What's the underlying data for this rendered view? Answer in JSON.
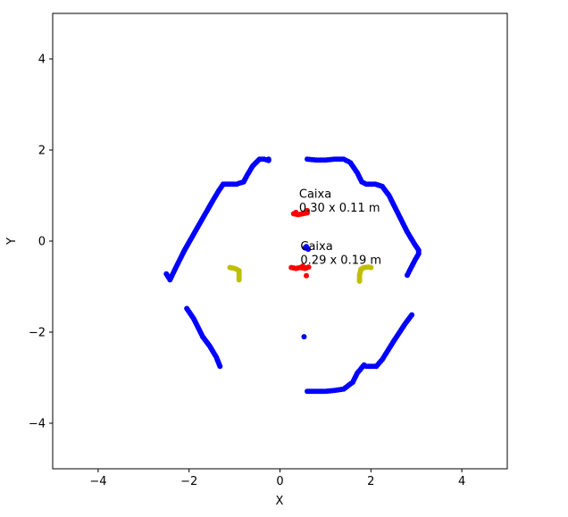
{
  "chart_data": {
    "type": "scatter",
    "xlabel": "X",
    "ylabel": "Y",
    "xlim": [
      -5,
      5
    ],
    "ylim": [
      -5,
      5
    ],
    "xticks": [
      -4,
      -2,
      0,
      2,
      4
    ],
    "yticks": [
      -4,
      -2,
      0,
      2,
      4
    ],
    "xtick_labels": [
      "−4",
      "−2",
      "0",
      "2",
      "4"
    ],
    "ytick_labels": [
      "−4",
      "−2",
      "0",
      "2",
      "4"
    ],
    "grid": false,
    "legend": "none",
    "series": [
      {
        "color": "#0000ff",
        "marker_size": 3.0,
        "polylines": [
          [
            [
              -2.5,
              -0.72
            ],
            [
              -2.45,
              -0.8
            ],
            [
              -2.42,
              -0.85
            ],
            [
              -2.3,
              -0.6
            ],
            [
              -2.1,
              -0.2
            ],
            [
              -1.9,
              0.15
            ],
            [
              -1.7,
              0.5
            ],
            [
              -1.5,
              0.85
            ],
            [
              -1.35,
              1.1
            ],
            [
              -1.25,
              1.25
            ],
            [
              -1.0,
              1.25
            ],
            [
              -0.95,
              1.25
            ],
            [
              -0.9,
              1.27
            ],
            [
              -0.8,
              1.3
            ],
            [
              -0.72,
              1.45
            ],
            [
              -0.6,
              1.65
            ],
            [
              -0.45,
              1.8
            ],
            [
              -0.35,
              1.8
            ],
            [
              -0.25,
              1.77
            ],
            [
              -0.25,
              1.8
            ]
          ],
          [
            [
              0.6,
              1.8
            ],
            [
              0.8,
              1.78
            ],
            [
              1.0,
              1.78
            ],
            [
              1.2,
              1.8
            ],
            [
              1.4,
              1.8
            ],
            [
              1.5,
              1.75
            ],
            [
              1.55,
              1.72
            ],
            [
              1.7,
              1.5
            ],
            [
              1.8,
              1.3
            ],
            [
              1.9,
              1.25
            ],
            [
              2.1,
              1.25
            ],
            [
              2.25,
              1.2
            ],
            [
              2.4,
              1.0
            ],
            [
              2.6,
              0.6
            ],
            [
              2.8,
              0.2
            ],
            [
              2.95,
              -0.05
            ],
            [
              3.05,
              -0.2
            ],
            [
              3.05,
              -0.28
            ],
            [
              2.98,
              -0.4
            ],
            [
              2.85,
              -0.65
            ],
            [
              2.8,
              -0.75
            ]
          ],
          [
            [
              2.9,
              -1.62
            ],
            [
              2.75,
              -1.82
            ],
            [
              2.5,
              -2.2
            ],
            [
              2.25,
              -2.6
            ],
            [
              2.12,
              -2.75
            ],
            [
              1.9,
              -2.75
            ],
            [
              1.85,
              -2.72
            ],
            [
              1.8,
              -2.78
            ],
            [
              1.7,
              -2.9
            ],
            [
              1.6,
              -3.1
            ],
            [
              1.4,
              -3.25
            ],
            [
              1.2,
              -3.28
            ],
            [
              1.0,
              -3.3
            ],
            [
              0.8,
              -3.3
            ],
            [
              0.6,
              -3.3
            ]
          ],
          [
            [
              -2.05,
              -1.48
            ],
            [
              -1.9,
              -1.7
            ],
            [
              -1.7,
              -2.1
            ],
            [
              -1.55,
              -2.3
            ],
            [
              -1.4,
              -2.55
            ],
            [
              -1.32,
              -2.75
            ]
          ]
        ],
        "points": [
          [
            0.55,
            -0.15
          ],
          [
            0.62,
            -0.18
          ],
          [
            0.58,
            -0.12
          ],
          [
            0.53,
            -2.1
          ]
        ]
      },
      {
        "color": "#ff0000",
        "marker_size": 3.0,
        "polylines": [
          [
            [
              0.3,
              0.6
            ],
            [
              0.4,
              0.58
            ],
            [
              0.5,
              0.6
            ],
            [
              0.6,
              0.62
            ],
            [
              0.6,
              0.67
            ]
          ],
          [
            [
              0.25,
              -0.58
            ],
            [
              0.35,
              -0.6
            ],
            [
              0.45,
              -0.58
            ],
            [
              0.55,
              -0.6
            ],
            [
              0.63,
              -0.57
            ]
          ]
        ],
        "points": [
          [
            0.58,
            -0.76
          ],
          [
            0.5,
            -0.55
          ],
          [
            0.35,
            0.63
          ]
        ]
      },
      {
        "color": "#bfbf00",
        "marker_size": 3.0,
        "polylines": [
          [
            [
              -1.1,
              -0.58
            ],
            [
              -1.0,
              -0.6
            ],
            [
              -0.95,
              -0.62
            ],
            [
              -0.9,
              -0.65
            ],
            [
              -0.9,
              -0.75
            ],
            [
              -0.9,
              -0.85
            ]
          ],
          [
            [
              1.75,
              -0.88
            ],
            [
              1.75,
              -0.75
            ],
            [
              1.78,
              -0.62
            ],
            [
              1.85,
              -0.58
            ],
            [
              1.95,
              -0.57
            ],
            [
              2.0,
              -0.58
            ]
          ]
        ],
        "points": []
      }
    ],
    "annotations": [
      {
        "text": "Caixa",
        "x": 0.42,
        "y": 0.95
      },
      {
        "text": "0.30 x 0.11 m",
        "x": 0.42,
        "y": 0.65
      },
      {
        "text": "Caixa",
        "x": 0.45,
        "y": -0.2
      },
      {
        "text": "0.29 x 0.19 m",
        "x": 0.45,
        "y": -0.5
      }
    ]
  }
}
